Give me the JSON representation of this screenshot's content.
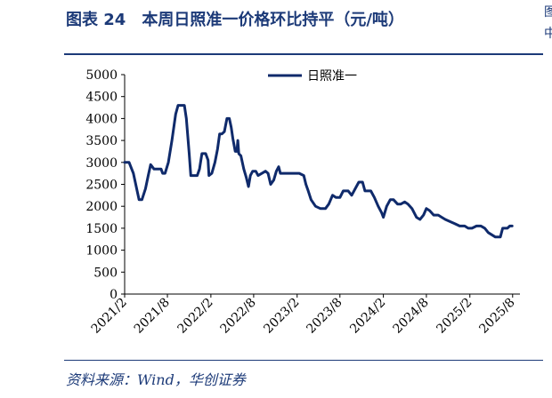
{
  "figure": {
    "title": "图表 24　本周日照准一价格环比持平（元/吨）",
    "source": "资料来源：Wind，华创证券"
  },
  "edge_fragments": [
    "图",
    "中"
  ],
  "chart_data": {
    "type": "line",
    "title": "",
    "xlabel": "",
    "ylabel": "",
    "ylim": [
      0,
      5000
    ],
    "yticks": [
      0,
      500,
      1000,
      1500,
      2000,
      2500,
      3000,
      3500,
      4000,
      4500,
      5000
    ],
    "xlim": [
      "2021-02-01",
      "2025-09-01"
    ],
    "xticks": [
      "2021/2",
      "2021/8",
      "2022/2",
      "2022/8",
      "2023/2",
      "2023/8",
      "2024/2",
      "2024/8",
      "2025/2",
      "2025/8"
    ],
    "legend_position": "top-center",
    "grid": false,
    "line_color": "#0f2a6b",
    "series": [
      {
        "name": "日照准一",
        "points": [
          [
            "2021-02-01",
            3000
          ],
          [
            "2021-02-20",
            3000
          ],
          [
            "2021-03-10",
            2750
          ],
          [
            "2021-03-28",
            2300
          ],
          [
            "2021-04-03",
            2150
          ],
          [
            "2021-04-15",
            2150
          ],
          [
            "2021-04-30",
            2400
          ],
          [
            "2021-05-12",
            2700
          ],
          [
            "2021-05-22",
            2950
          ],
          [
            "2021-06-05",
            2850
          ],
          [
            "2021-06-20",
            2850
          ],
          [
            "2021-07-05",
            2850
          ],
          [
            "2021-07-12",
            2750
          ],
          [
            "2021-07-22",
            2750
          ],
          [
            "2021-08-05",
            3000
          ],
          [
            "2021-08-20",
            3500
          ],
          [
            "2021-09-05",
            4100
          ],
          [
            "2021-09-15",
            4300
          ],
          [
            "2021-10-01",
            4300
          ],
          [
            "2021-10-12",
            4300
          ],
          [
            "2021-10-20",
            4000
          ],
          [
            "2021-11-01",
            3200
          ],
          [
            "2021-11-08",
            2700
          ],
          [
            "2021-11-20",
            2700
          ],
          [
            "2021-12-05",
            2700
          ],
          [
            "2021-12-15",
            2850
          ],
          [
            "2021-12-25",
            3200
          ],
          [
            "2022-01-10",
            3200
          ],
          [
            "2022-01-20",
            3050
          ],
          [
            "2022-01-24",
            2700
          ],
          [
            "2022-02-05",
            2750
          ],
          [
            "2022-02-18",
            3000
          ],
          [
            "2022-03-01",
            3300
          ],
          [
            "2022-03-10",
            3650
          ],
          [
            "2022-03-20",
            3650
          ],
          [
            "2022-03-30",
            3700
          ],
          [
            "2022-04-10",
            4000
          ],
          [
            "2022-04-20",
            4000
          ],
          [
            "2022-04-28",
            3800
          ],
          [
            "2022-05-05",
            3550
          ],
          [
            "2022-05-15",
            3250
          ],
          [
            "2022-05-22",
            3250
          ],
          [
            "2022-05-26",
            3500
          ],
          [
            "2022-05-30",
            3200
          ],
          [
            "2022-06-08",
            3150
          ],
          [
            "2022-06-20",
            2850
          ],
          [
            "2022-07-01",
            2650
          ],
          [
            "2022-07-10",
            2450
          ],
          [
            "2022-07-18",
            2700
          ],
          [
            "2022-07-28",
            2800
          ],
          [
            "2022-08-10",
            2800
          ],
          [
            "2022-08-20",
            2700
          ],
          [
            "2022-09-05",
            2750
          ],
          [
            "2022-09-20",
            2800
          ],
          [
            "2022-10-01",
            2750
          ],
          [
            "2022-10-12",
            2500
          ],
          [
            "2022-10-25",
            2600
          ],
          [
            "2022-11-05",
            2800
          ],
          [
            "2022-11-15",
            2900
          ],
          [
            "2022-11-22",
            2750
          ],
          [
            "2022-12-10",
            2750
          ],
          [
            "2023-01-01",
            2750
          ],
          [
            "2023-01-20",
            2750
          ],
          [
            "2023-02-10",
            2750
          ],
          [
            "2023-03-01",
            2700
          ],
          [
            "2023-03-10",
            2500
          ],
          [
            "2023-03-20",
            2350
          ],
          [
            "2023-04-01",
            2150
          ],
          [
            "2023-04-20",
            2000
          ],
          [
            "2023-05-10",
            1950
          ],
          [
            "2023-06-01",
            1950
          ],
          [
            "2023-06-15",
            2050
          ],
          [
            "2023-07-01",
            2250
          ],
          [
            "2023-07-15",
            2200
          ],
          [
            "2023-08-01",
            2200
          ],
          [
            "2023-08-15",
            2350
          ],
          [
            "2023-09-05",
            2350
          ],
          [
            "2023-09-20",
            2250
          ],
          [
            "2023-10-05",
            2400
          ],
          [
            "2023-10-20",
            2550
          ],
          [
            "2023-11-05",
            2550
          ],
          [
            "2023-11-15",
            2350
          ],
          [
            "2023-12-10",
            2350
          ],
          [
            "2023-12-25",
            2200
          ],
          [
            "2024-01-10",
            2000
          ],
          [
            "2024-01-25",
            1850
          ],
          [
            "2024-02-01",
            1750
          ],
          [
            "2024-02-15",
            2000
          ],
          [
            "2024-03-01",
            2150
          ],
          [
            "2024-03-15",
            2150
          ],
          [
            "2024-04-01",
            2050
          ],
          [
            "2024-04-15",
            2050
          ],
          [
            "2024-05-01",
            2100
          ],
          [
            "2024-05-15",
            2050
          ],
          [
            "2024-06-01",
            1950
          ],
          [
            "2024-06-20",
            1750
          ],
          [
            "2024-07-05",
            1700
          ],
          [
            "2024-07-20",
            1800
          ],
          [
            "2024-08-01",
            1950
          ],
          [
            "2024-08-15",
            1900
          ],
          [
            "2024-09-01",
            1800
          ],
          [
            "2024-09-20",
            1800
          ],
          [
            "2024-10-05",
            1750
          ],
          [
            "2024-10-20",
            1700
          ],
          [
            "2024-11-10",
            1650
          ],
          [
            "2024-12-01",
            1600
          ],
          [
            "2024-12-20",
            1550
          ],
          [
            "2025-01-10",
            1550
          ],
          [
            "2025-01-25",
            1500
          ],
          [
            "2025-02-10",
            1500
          ],
          [
            "2025-03-01",
            1550
          ],
          [
            "2025-03-20",
            1550
          ],
          [
            "2025-04-05",
            1500
          ],
          [
            "2025-04-20",
            1400
          ],
          [
            "2025-05-05",
            1350
          ],
          [
            "2025-05-20",
            1300
          ],
          [
            "2025-06-10",
            1300
          ],
          [
            "2025-06-20",
            1500
          ],
          [
            "2025-07-10",
            1500
          ],
          [
            "2025-07-20",
            1550
          ],
          [
            "2025-07-30",
            1550
          ]
        ]
      }
    ]
  }
}
